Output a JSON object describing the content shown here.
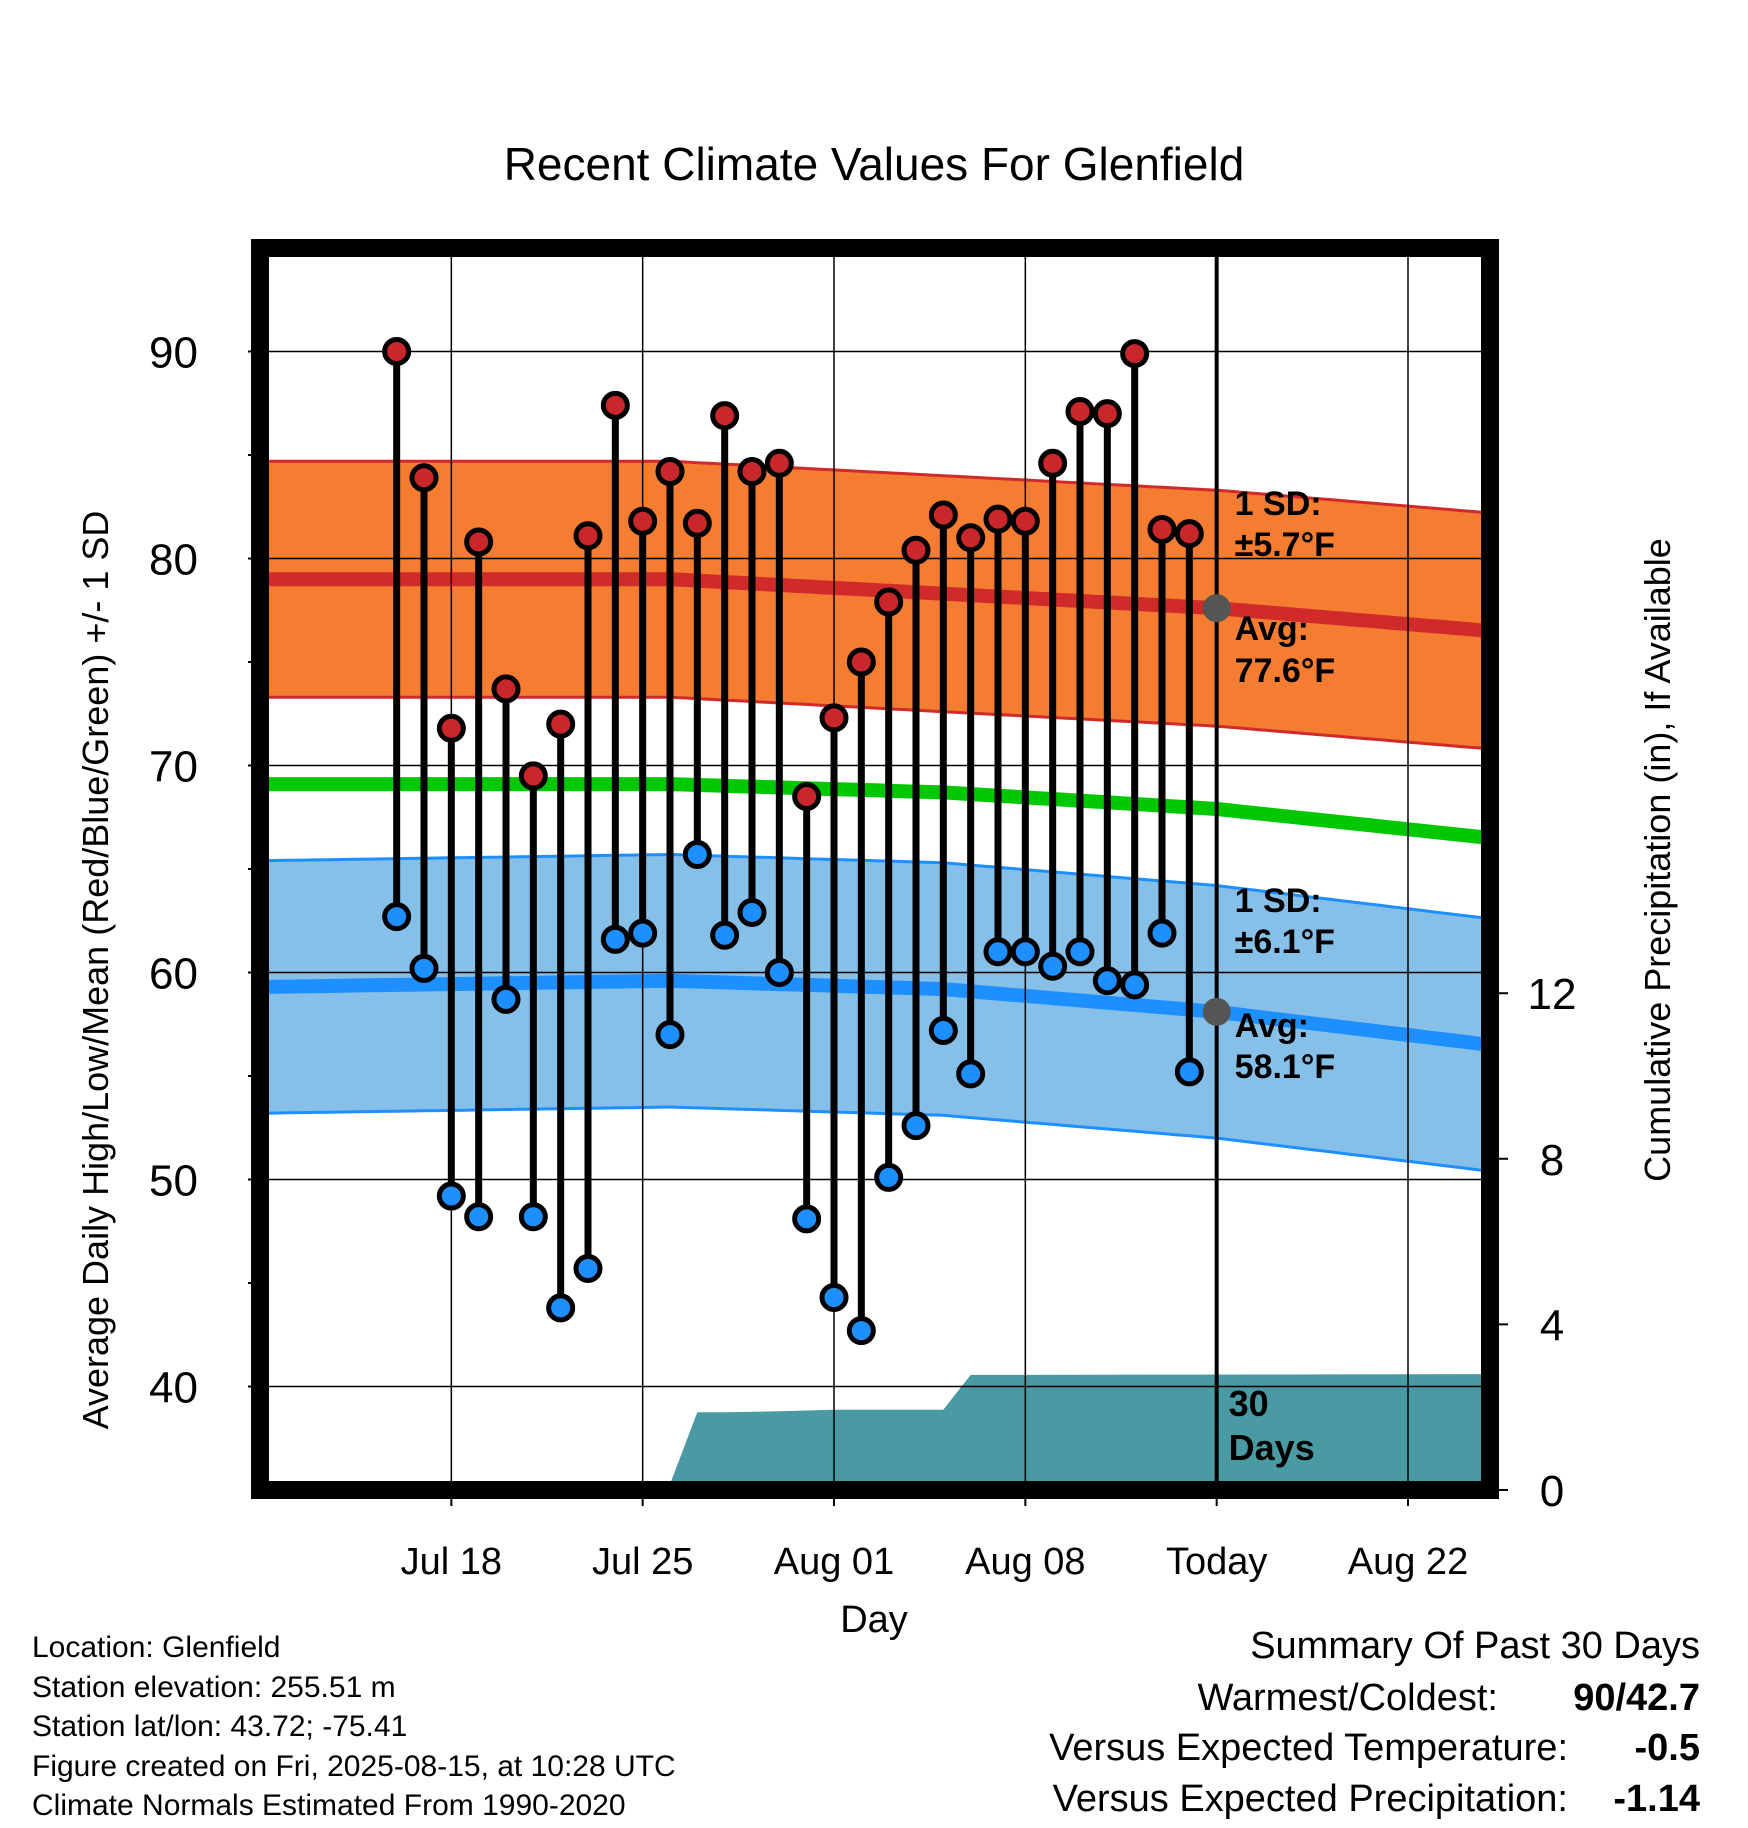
{
  "chart_data": {
    "type": "line",
    "title": "Recent Climate Values For Glenfield",
    "xlabel": "Day",
    "ylabel": "Average Daily High/Low/Mean (Red/Blue/Green) +/- 1 SD",
    "y2label": "Cumulative Precipitation (in), If Available",
    "ylim": [
      35,
      95
    ],
    "y2lim": [
      0,
      30
    ],
    "y_ticks": [
      40,
      50,
      60,
      70,
      80,
      90
    ],
    "y2_ticks": [
      0,
      4,
      8,
      12
    ],
    "x_range_days": [
      -35,
      10
    ],
    "x_ticks": [
      {
        "day": -28,
        "label": "Jul 18"
      },
      {
        "day": -21,
        "label": "Jul 25"
      },
      {
        "day": -14,
        "label": "Aug 01"
      },
      {
        "day": -7,
        "label": "Aug 08"
      },
      {
        "day": 0,
        "label": "Today"
      },
      {
        "day": 7,
        "label": "Aug 22"
      }
    ],
    "grid": true,
    "observations": {
      "day": [
        -30,
        -29,
        -28,
        -27,
        -26,
        -25,
        -24,
        -23,
        -22,
        -21,
        -20,
        -19,
        -18,
        -17,
        -16,
        -15,
        -14,
        -13,
        -12,
        -11,
        -10,
        -9,
        -8,
        -7,
        -6,
        -5,
        -4,
        -3,
        -2,
        -1
      ],
      "high": [
        90,
        83.9,
        71.8,
        80.8,
        73.7,
        69.5,
        72,
        81.1,
        87.4,
        81.8,
        84.2,
        81.7,
        86.9,
        84.2,
        84.6,
        68.5,
        72.3,
        75,
        77.9,
        80.4,
        82.1,
        81,
        81.9,
        81.8,
        84.6,
        87.1,
        87,
        89.9,
        81.4,
        81.2
      ],
      "low": [
        62.7,
        60.2,
        49.2,
        48.2,
        58.7,
        48.2,
        43.8,
        45.7,
        61.6,
        61.9,
        57,
        65.7,
        61.8,
        62.9,
        60,
        48.1,
        44.3,
        42.7,
        50.1,
        52.6,
        57.2,
        55.1,
        61,
        61,
        60.3,
        61,
        59.6,
        59.4,
        61.9,
        55.2
      ]
    },
    "normals": {
      "day": [
        -35,
        -20,
        -10,
        0,
        10
      ],
      "avg_high": [
        79.0,
        79.0,
        78.3,
        77.6,
        76.5
      ],
      "avg_low": [
        59.3,
        59.6,
        59.2,
        58.1,
        56.5
      ],
      "avg_mean": [
        69.1,
        69.1,
        68.7,
        67.9,
        66.5
      ],
      "high_sd": 5.7,
      "low_sd": 6.1
    },
    "precipitation": {
      "day": [
        -35,
        -28,
        -26,
        -22,
        -20,
        -19,
        -18,
        -16,
        -14,
        -10,
        -9,
        -8,
        10
      ],
      "cumulative": [
        0.02,
        0.08,
        0.14,
        0.14,
        0.14,
        1.88,
        1.88,
        1.9,
        1.94,
        1.94,
        2.78,
        2.78,
        2.8
      ]
    },
    "annotations": {
      "high_sd_label": "1 SD:",
      "high_sd_value": "±5.7°F",
      "high_avg_label": "Avg:",
      "high_avg_value": "77.6°F",
      "low_sd_label": "1 SD:",
      "low_sd_value": "±6.1°F",
      "low_avg_label": "Avg:",
      "low_avg_value": "58.1°F",
      "period_number": "30",
      "period_unit": "Days"
    },
    "colors": {
      "high_band": "#f47d32",
      "high_line": "#d12a2a",
      "low_band": "#86c0e8",
      "low_line": "#1e8fff",
      "mean_line": "#00c800",
      "precip_fill": "#4a9aa4",
      "high_marker": "#c9272b",
      "low_marker": "#1e8fff"
    }
  },
  "info": {
    "location": "Location: Glenfield",
    "elevation": "Station elevation: 255.51 m",
    "latlon": "Station lat/lon: 43.72; -75.41",
    "created": "Figure created on Fri, 2025-08-15, at 10:28 UTC",
    "normals": "Climate Normals Estimated From 1990-2020"
  },
  "summary": {
    "title": "Summary Of Past 30 Days",
    "warmest_label": "Warmest/Coldest:",
    "warmest_high": "90",
    "warmest_sep": "/",
    "warmest_low": "42.7",
    "temp_label": "Versus Expected Temperature:",
    "temp_value": "-0.5",
    "temp_color": "#1e8fff",
    "precip_label": "Versus Expected Precipitation:",
    "precip_value": "-1.14",
    "precip_color": "#a0522d"
  }
}
